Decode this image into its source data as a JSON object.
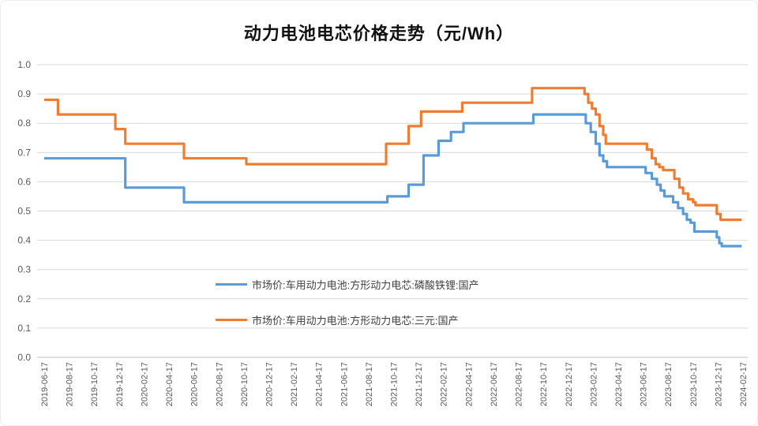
{
  "page": {
    "background": "#ffffff"
  },
  "chart_data": {
    "type": "line",
    "line_style": "step-after",
    "title": "动力电池电芯价格走势（元/Wh）",
    "unit": "元/Wh",
    "xlabel": "",
    "ylabel": "",
    "ylim": [
      0.0,
      1.0
    ],
    "grid": "horizontal",
    "legend_position": "inside-bottom",
    "gridline_color": "#D9D9D9",
    "axis_line_color": "#BFBFBF",
    "axis_label_color": "#595959",
    "y_tick_labels": [
      "0.0",
      "0.1",
      "0.2",
      "0.3",
      "0.4",
      "0.5",
      "0.6",
      "0.7",
      "0.8",
      "0.9",
      "1.0"
    ],
    "x_tick_labels": [
      "2019-06-17",
      "2019-08-17",
      "2019-10-17",
      "2019-12-17",
      "2020-02-17",
      "2020-04-17",
      "2020-06-17",
      "2020-08-17",
      "2020-10-17",
      "2020-12-17",
      "2021-02-17",
      "2021-04-17",
      "2021-06-17",
      "2021-08-17",
      "2021-10-17",
      "2021-12-17",
      "2022-02-17",
      "2022-04-17",
      "2022-06-17",
      "2022-08-17",
      "2022-10-17",
      "2022-12-17",
      "2023-02-17",
      "2023-04-17",
      "2023-06-17",
      "2023-08-17",
      "2023-10-17",
      "2023-12-17",
      "2024-02-17"
    ],
    "points_format": "[x_tick_index (1 unit = 2 months), price 元/Wh], step-after interpolation",
    "series": [
      {
        "name": "市场价:车用动力电池:方形动力电芯:磷酸铁锂:国产",
        "color": "#5B9BD5",
        "points": [
          [
            0,
            0.68
          ],
          [
            3.25,
            0.58
          ],
          [
            5.6,
            0.53
          ],
          [
            13.75,
            0.55
          ],
          [
            14.6,
            0.59
          ],
          [
            15.2,
            0.69
          ],
          [
            15.8,
            0.74
          ],
          [
            16.3,
            0.77
          ],
          [
            16.8,
            0.8
          ],
          [
            19.6,
            0.83
          ],
          [
            21.7,
            0.8
          ],
          [
            21.9,
            0.77
          ],
          [
            22.1,
            0.73
          ],
          [
            22.25,
            0.69
          ],
          [
            22.4,
            0.67
          ],
          [
            22.55,
            0.65
          ],
          [
            24.1,
            0.63
          ],
          [
            24.35,
            0.61
          ],
          [
            24.55,
            0.59
          ],
          [
            24.7,
            0.57
          ],
          [
            24.85,
            0.55
          ],
          [
            25.2,
            0.53
          ],
          [
            25.4,
            0.51
          ],
          [
            25.6,
            0.49
          ],
          [
            25.75,
            0.47
          ],
          [
            25.9,
            0.46
          ],
          [
            26.05,
            0.43
          ],
          [
            26.95,
            0.41
          ],
          [
            27.05,
            0.39
          ],
          [
            27.15,
            0.38
          ],
          [
            27.95,
            0.38
          ]
        ]
      },
      {
        "name": "市场价:车用动力电池:方形动力电芯:三元:国产",
        "color": "#ED7D31",
        "points": [
          [
            0,
            0.88
          ],
          [
            0.55,
            0.83
          ],
          [
            2.85,
            0.78
          ],
          [
            3.25,
            0.73
          ],
          [
            5.6,
            0.68
          ],
          [
            8.1,
            0.66
          ],
          [
            13.7,
            0.73
          ],
          [
            14.6,
            0.79
          ],
          [
            15.1,
            0.84
          ],
          [
            16.75,
            0.87
          ],
          [
            19.55,
            0.92
          ],
          [
            21.65,
            0.9
          ],
          [
            21.8,
            0.87
          ],
          [
            21.95,
            0.85
          ],
          [
            22.1,
            0.83
          ],
          [
            22.25,
            0.79
          ],
          [
            22.4,
            0.76
          ],
          [
            22.5,
            0.73
          ],
          [
            24.15,
            0.71
          ],
          [
            24.35,
            0.68
          ],
          [
            24.5,
            0.66
          ],
          [
            24.65,
            0.65
          ],
          [
            24.8,
            0.64
          ],
          [
            25.25,
            0.61
          ],
          [
            25.45,
            0.58
          ],
          [
            25.6,
            0.56
          ],
          [
            25.8,
            0.54
          ],
          [
            26.0,
            0.53
          ],
          [
            26.1,
            0.52
          ],
          [
            26.95,
            0.49
          ],
          [
            27.1,
            0.47
          ],
          [
            27.95,
            0.47
          ]
        ]
      }
    ]
  }
}
